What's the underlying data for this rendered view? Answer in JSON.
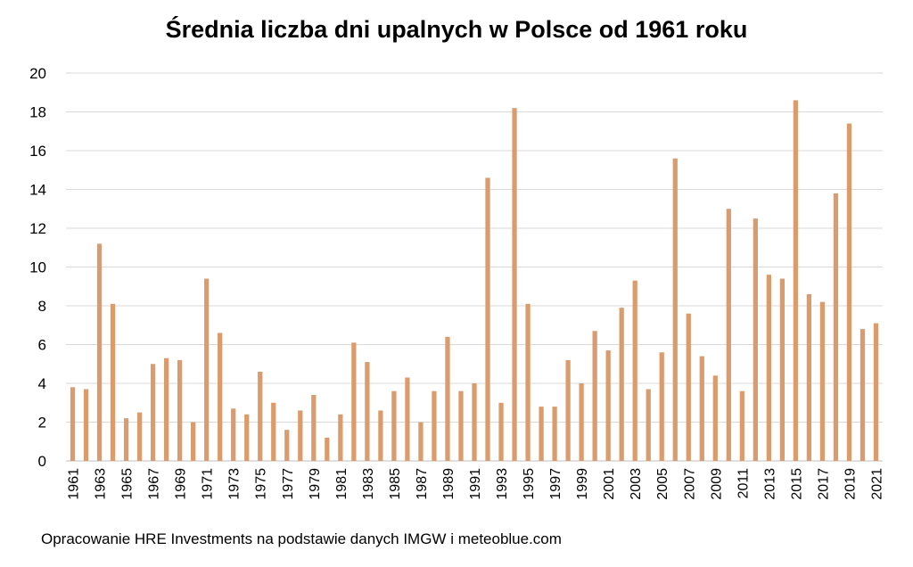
{
  "chart_data": {
    "type": "bar",
    "title": "Średnia liczba dni upalnych w Polsce od 1961 roku",
    "xlabel": "",
    "ylabel": "",
    "ylim": [
      0,
      20
    ],
    "yticks": [
      "0",
      "2",
      "4",
      "6",
      "8",
      "10",
      "12",
      "14",
      "16",
      "18",
      "20"
    ],
    "grid": true,
    "legend": "none",
    "bar_color": "#DA9C6C",
    "grid_color": "#D9D9D9",
    "categories": [
      "1961",
      "1962",
      "1963",
      "1964",
      "1965",
      "1966",
      "1967",
      "1968",
      "1969",
      "1970",
      "1971",
      "1972",
      "1973",
      "1974",
      "1975",
      "1976",
      "1977",
      "1978",
      "1979",
      "1980",
      "1981",
      "1982",
      "1983",
      "1984",
      "1985",
      "1986",
      "1987",
      "1988",
      "1989",
      "1990",
      "1991",
      "1992",
      "1993",
      "1994",
      "1995",
      "1996",
      "1997",
      "1998",
      "1999",
      "2000",
      "2001",
      "2002",
      "2003",
      "2004",
      "2005",
      "2006",
      "2007",
      "2008",
      "2009",
      "2010",
      "2011",
      "2012",
      "2013",
      "2014",
      "2015",
      "2016",
      "2017",
      "2018",
      "2019",
      "2020",
      "2021"
    ],
    "values": [
      3.8,
      3.7,
      11.2,
      8.1,
      2.2,
      2.5,
      5.0,
      5.3,
      5.2,
      2.0,
      9.4,
      6.6,
      2.7,
      2.4,
      4.6,
      3.0,
      1.6,
      2.6,
      3.4,
      1.2,
      2.4,
      6.1,
      5.1,
      2.6,
      3.6,
      4.3,
      2.0,
      3.6,
      6.4,
      3.6,
      4.0,
      14.6,
      3.0,
      18.2,
      8.1,
      2.8,
      2.8,
      5.2,
      4.0,
      6.7,
      5.7,
      7.9,
      9.3,
      3.7,
      5.6,
      15.6,
      7.6,
      5.4,
      4.4,
      13.0,
      3.6,
      12.5,
      9.6,
      9.4,
      18.6,
      8.6,
      8.2,
      13.8,
      17.4,
      6.8,
      7.1
    ],
    "x_tick_labels": [
      "1961",
      "1963",
      "1965",
      "1967",
      "1969",
      "1971",
      "1973",
      "1975",
      "1977",
      "1979",
      "1981",
      "1983",
      "1985",
      "1987",
      "1989",
      "1991",
      "1993",
      "1995",
      "1997",
      "1999",
      "2001",
      "2003",
      "2005",
      "2007",
      "2009",
      "2011",
      "2013",
      "2015",
      "2017",
      "2019",
      "2021"
    ]
  },
  "source_note": "Opracowanie HRE Investments na podstawie danych IMGW i meteoblue.com"
}
